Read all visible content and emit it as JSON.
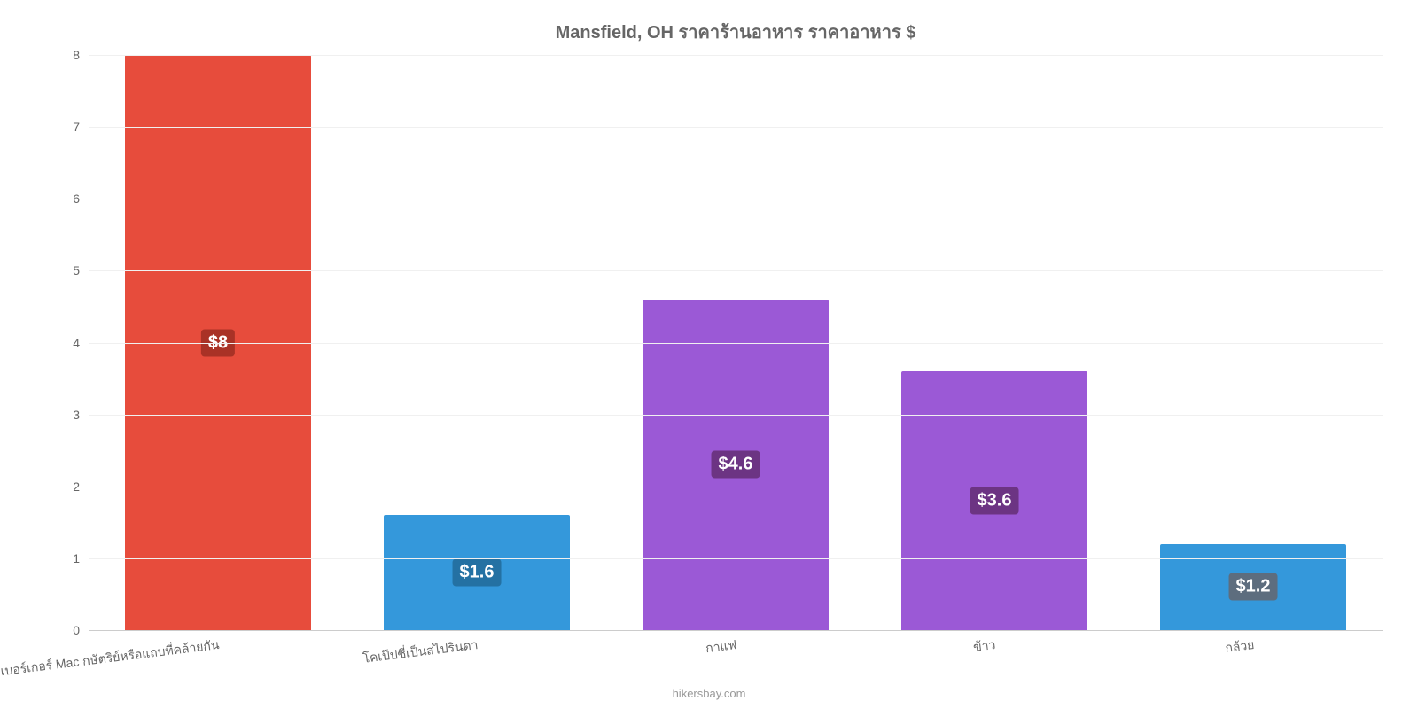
{
  "chart": {
    "type": "bar",
    "title": "Mansfield, OH ราคาร้านอาหาร ราคาอาหาร $",
    "title_fontsize": 20,
    "title_color": "#666666",
    "background_color": "#ffffff",
    "grid_color": "#f0f0f0",
    "axis_color": "#cccccc",
    "ylim": [
      0,
      8
    ],
    "yticks": [
      0,
      1,
      2,
      3,
      4,
      5,
      6,
      7,
      8
    ],
    "bar_width": 0.72,
    "categories": [
      "เบอร์เกอร์ Mac กษัตริย์หรือแถบที่คล้ายกัน",
      "โคเป๊ปซี่เป็นสไปรินดา",
      "กาแฟ",
      "ข้าว",
      "กล้วย"
    ],
    "values": [
      8,
      1.6,
      4.6,
      3.6,
      1.2
    ],
    "value_labels": [
      "$8",
      "$1.6",
      "$4.6",
      "$3.6",
      "$1.2"
    ],
    "bar_colors": [
      "#e74c3c",
      "#3498db",
      "#9b59d6",
      "#9b59d6",
      "#3498db"
    ],
    "label_bg_colors": [
      "#a93226",
      "#2471a3",
      "#6c3483",
      "#6c3483",
      "#5d6d7e"
    ],
    "label_fontsize": 20,
    "xlabel_fontsize": 14,
    "xlabel_color": "#666666",
    "ylabel_fontsize": 14,
    "ylabel_color": "#666666",
    "attribution": "hikersbay.com",
    "attribution_color": "#999999"
  }
}
